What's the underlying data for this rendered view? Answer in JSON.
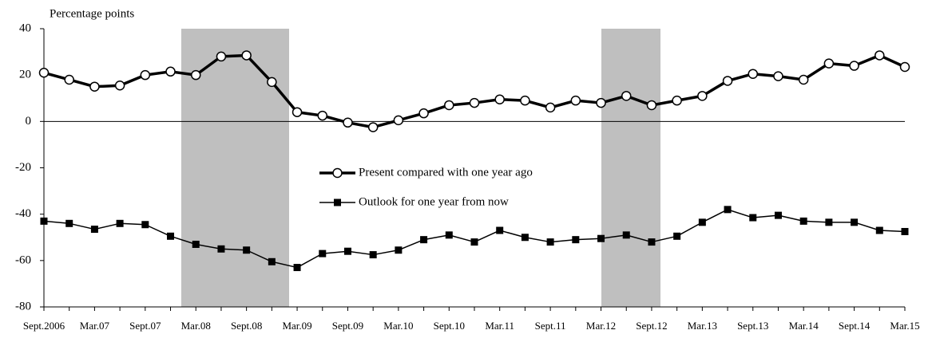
{
  "chart_data": {
    "type": "line",
    "y_axis_label": "Percentage points",
    "categories": [
      "Sept.2006",
      null,
      "Mar.07",
      null,
      "Sept.07",
      null,
      "Mar.08",
      null,
      "Sept.08",
      null,
      "Mar.09",
      null,
      "Sept.09",
      null,
      "Mar.10",
      null,
      "Sept.10",
      null,
      "Mar.11",
      null,
      "Sept.11",
      null,
      "Mar.12",
      null,
      "Sept.12",
      null,
      "Mar.13",
      null,
      "Sept.13",
      null,
      "Mar.14",
      null,
      "Sept.14",
      null,
      "Mar.15"
    ],
    "series": [
      {
        "name": "Present compared with one year ago",
        "color": "#000000",
        "marker": "circle",
        "values": [
          21,
          18,
          15,
          15.5,
          20,
          21.5,
          20,
          28,
          28.5,
          17,
          4,
          2.5,
          -0.5,
          -2.5,
          0.5,
          3.5,
          7,
          8,
          9.5,
          9,
          6,
          9,
          8,
          11,
          7,
          9,
          11,
          17.5,
          20.5,
          19.5,
          18,
          25,
          24,
          28.5,
          23.5
        ]
      },
      {
        "name": "Outlook for one year from now",
        "color": "#000000",
        "marker": "square",
        "values": [
          -43,
          -44,
          -46.5,
          -44,
          -44.5,
          -49.5,
          -53,
          -55,
          -55.5,
          -60.5,
          -63,
          -57,
          -56,
          -57.5,
          -55.5,
          -51,
          -49,
          -52,
          -47,
          -50,
          -52,
          -51,
          -50.5,
          -49,
          -52,
          -49.5,
          -43.5,
          -38,
          -41.5,
          -40.5,
          -43,
          -43.5,
          -43.5,
          -47,
          -47.5
        ]
      }
    ],
    "ylim": [
      -80,
      40
    ],
    "yticks": [
      -80,
      -60,
      -40,
      -20,
      0,
      20,
      40
    ],
    "grid": false
  }
}
